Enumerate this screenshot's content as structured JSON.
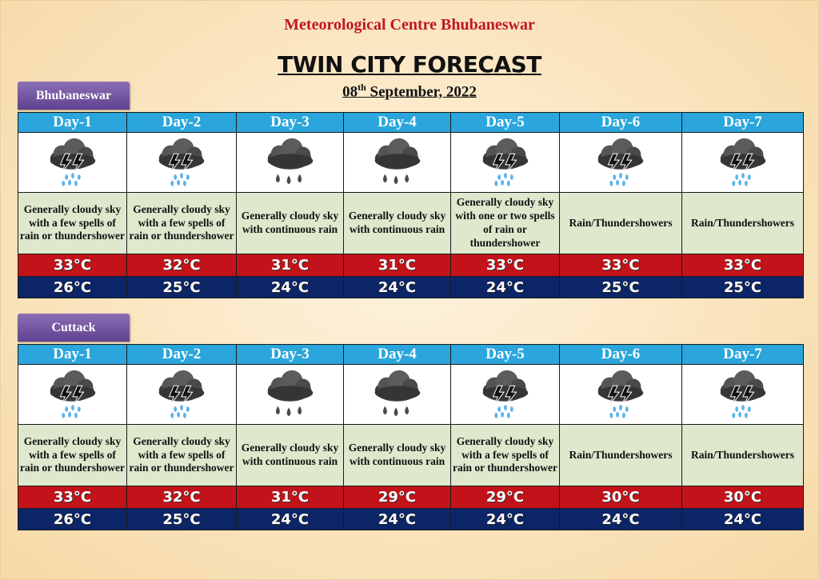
{
  "header": {
    "org": "Meteorological Centre Bhubaneswar",
    "title": "TWIN CITY FORECAST",
    "date_day": "08",
    "date_suffix": "th",
    "date_rest": " September, 2022"
  },
  "colors": {
    "day_header": "#2aa6dc",
    "max_row": "#c3131a",
    "min_row": "#0b2567",
    "desc_bg": "#dde8cc",
    "city_tab": "#6a4c9c",
    "title_red": "#c0171f"
  },
  "cities": [
    {
      "name": "Bhubaneswar",
      "days": [
        {
          "day": "Day-1",
          "icon": "thunderstorm-rain-icon",
          "desc": "Generally cloudy sky with a few spells of rain or thundershower",
          "max": "33°C",
          "min": "26°C"
        },
        {
          "day": "Day-2",
          "icon": "thunderstorm-rain-icon",
          "desc": "Generally cloudy sky with a few spells of rain or thundershower",
          "max": "32°C",
          "min": "25°C"
        },
        {
          "day": "Day-3",
          "icon": "rain-cloud-icon",
          "desc": "Generally cloudy sky with continuous rain",
          "max": "31°C",
          "min": "24°C"
        },
        {
          "day": "Day-4",
          "icon": "rain-cloud-icon",
          "desc": "Generally cloudy sky with continuous rain",
          "max": "31°C",
          "min": "24°C"
        },
        {
          "day": "Day-5",
          "icon": "thunderstorm-rain-icon",
          "desc": "Generally cloudy sky with one or two spells of rain or thundershower",
          "max": "33°C",
          "min": "24°C"
        },
        {
          "day": "Day-6",
          "icon": "thunderstorm-rain-icon",
          "desc": "Rain/Thundershowers",
          "max": "33°C",
          "min": "25°C"
        },
        {
          "day": "Day-7",
          "icon": "thunderstorm-rain-icon",
          "desc": "Rain/Thundershowers",
          "max": "33°C",
          "min": "25°C"
        }
      ]
    },
    {
      "name": "Cuttack",
      "days": [
        {
          "day": "Day-1",
          "icon": "thunderstorm-rain-icon",
          "desc": "Generally cloudy sky with a few spells of rain or thundershower",
          "max": "33°C",
          "min": "26°C"
        },
        {
          "day": "Day-2",
          "icon": "thunderstorm-rain-icon",
          "desc": "Generally cloudy sky with a few spells of rain or thundershower",
          "max": "32°C",
          "min": "25°C"
        },
        {
          "day": "Day-3",
          "icon": "rain-cloud-icon",
          "desc": "Generally cloudy sky with continuous rain",
          "max": "31°C",
          "min": "24°C"
        },
        {
          "day": "Day-4",
          "icon": "rain-cloud-icon",
          "desc": "Generally cloudy sky with continuous rain",
          "max": "29°C",
          "min": "24°C"
        },
        {
          "day": "Day-5",
          "icon": "thunderstorm-rain-icon",
          "desc": "Generally cloudy sky with a few spells of rain or thundershower",
          "max": "29°C",
          "min": "24°C"
        },
        {
          "day": "Day-6",
          "icon": "thunderstorm-rain-icon",
          "desc": "Rain/Thundershowers",
          "max": "30°C",
          "min": "24°C"
        },
        {
          "day": "Day-7",
          "icon": "thunderstorm-rain-icon",
          "desc": "Rain/Thundershowers",
          "max": "30°C",
          "min": "24°C"
        }
      ]
    }
  ]
}
